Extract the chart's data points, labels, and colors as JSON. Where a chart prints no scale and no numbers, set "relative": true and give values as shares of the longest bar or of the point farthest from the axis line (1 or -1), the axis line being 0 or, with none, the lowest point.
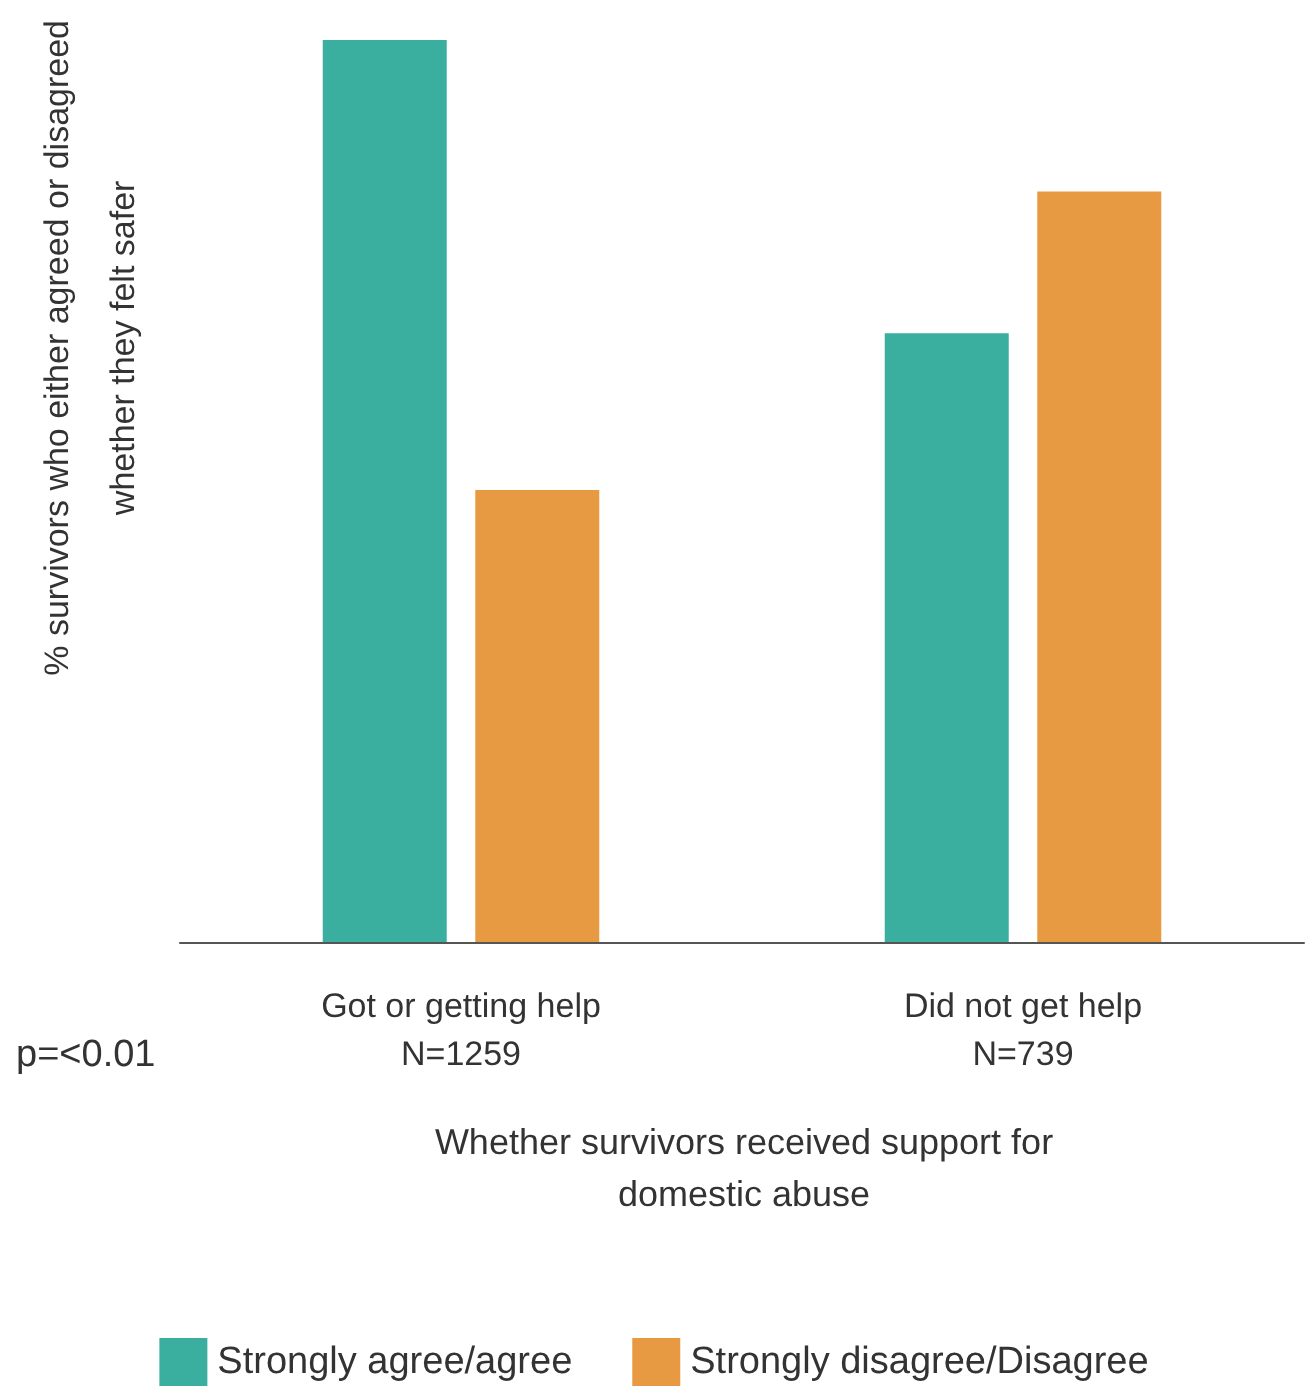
{
  "chart_data": {
    "type": "bar",
    "relative": true,
    "categories": [
      "Got or getting help\nN=1259",
      "Did not get help\nN=739"
    ],
    "series": [
      {
        "name": "Strongly agree/agree",
        "color": "#3aaf9f",
        "values": [
          1,
          0.675
        ]
      },
      {
        "name": "Strongly disagree/Disagree",
        "color": "#e89a42",
        "values": [
          0.501,
          0.832
        ]
      }
    ],
    "xlabel": "Whether survivors received support for\ndomestic abuse",
    "ylabel": "% survivors who either agreed or disagreed\nwhether they felt safer",
    "annotations": [
      "p=<0.01"
    ],
    "legend": "bottom",
    "grid": false
  }
}
